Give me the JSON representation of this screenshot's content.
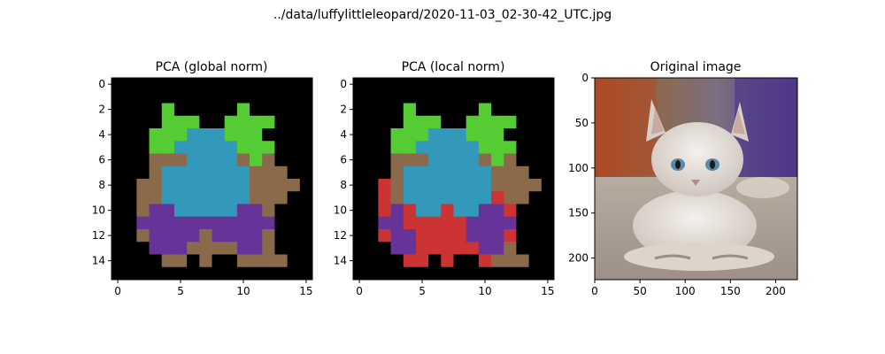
{
  "figure": {
    "suptitle": "../data/luffylittleleopard/2020-11-03_02-30-42_UTC.jpg"
  },
  "palette": {
    "background": "#000000",
    "green": "#55cc33",
    "cyan": "#3399bb",
    "purple": "#663399",
    "brown": "#8a6a4a",
    "red": "#cc3333"
  },
  "chart_data": [
    {
      "type": "heatmap",
      "title": "PCA (global norm)",
      "grid": false,
      "xlim": [
        0,
        15
      ],
      "ylim": [
        15,
        0
      ],
      "xticks": [
        "0",
        "5",
        "10",
        "15"
      ],
      "yticks": [
        "0",
        "2",
        "4",
        "6",
        "8",
        "10",
        "12",
        "14"
      ],
      "rows": [
        "0000000000000000",
        "0000000000000000",
        "0000G00000G00000",
        "0000GGG00GGGG000",
        "000GGGCCCGGG0000",
        "000GGCCCCCGGG000",
        "000BBBCCCCBGB000",
        "000BCCCCCCCBBB00",
        "00BBCCCCCCCBBBB0",
        "00BBCCCCCCCBBB00",
        "00BPPCCCCCPPB000",
        "00PPPPPPPPPPP000",
        "00BPPPPBPPPPB000",
        "000PPPBBBBPPB000",
        "0000BB0B00BBBB00",
        "0000000000000000"
      ]
    },
    {
      "type": "heatmap",
      "title": "PCA (local norm)",
      "grid": false,
      "xlim": [
        0,
        15
      ],
      "ylim": [
        15,
        0
      ],
      "xticks": [
        "0",
        "5",
        "10",
        "15"
      ],
      "yticks": [
        "0",
        "2",
        "4",
        "6",
        "8",
        "10",
        "12",
        "14"
      ],
      "rows": [
        "0000000000000000",
        "0000000000000000",
        "0000G00000G00000",
        "0000GGG00GGGG000",
        "000GGGCCCGGG0000",
        "000GGCCCCCGGG000",
        "000BBBCCCCBGB000",
        "000BCCCCCCCBBB00",
        "00RBCCCCCCCBBBB0",
        "00RBCCCCCCCRBB00",
        "00RPRCCRCCPPR000",
        "00PPRRRRRPPPP000",
        "00RPPRRRRPPPR000",
        "000PPRRRRRPPB000",
        "0000RR0R00RBBB00",
        "0000000000000000"
      ]
    },
    {
      "type": "image",
      "title": "Original image",
      "xlim": [
        0,
        224
      ],
      "ylim": [
        224,
        0
      ],
      "xticks": [
        "0",
        "50",
        "100",
        "150",
        "200"
      ],
      "yticks": [
        "0",
        "50",
        "100",
        "150",
        "200"
      ]
    }
  ]
}
